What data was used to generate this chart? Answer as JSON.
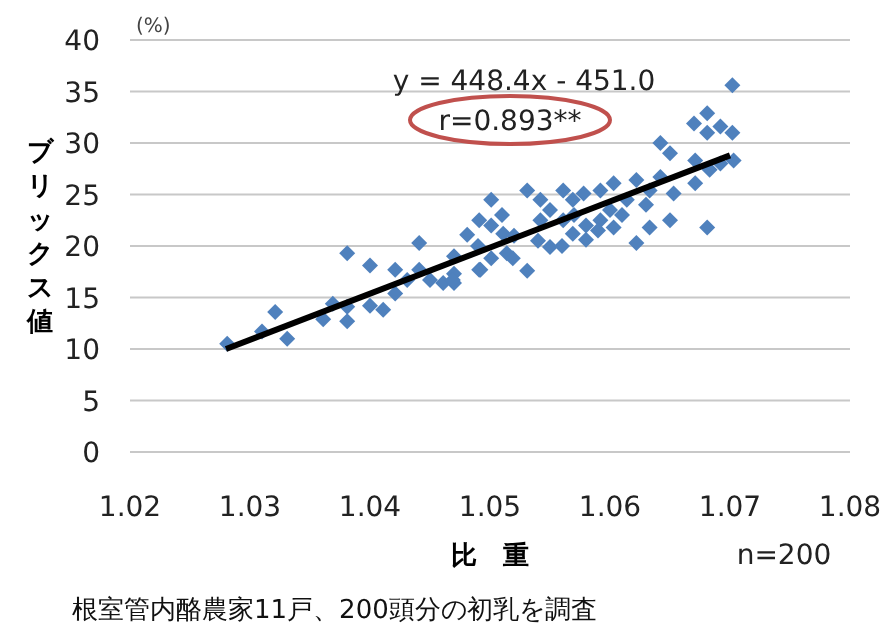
{
  "chart_data": {
    "type": "scatter",
    "xlabel": "比　重",
    "ylabel": "ブリックス値",
    "xlim": [
      1.02,
      1.08
    ],
    "xticks": [
      1.02,
      1.03,
      1.04,
      1.05,
      1.06,
      1.07,
      1.08
    ],
    "ylim": [
      0,
      40
    ],
    "yticks": [
      0,
      5,
      10,
      15,
      20,
      25,
      30,
      35,
      40
    ],
    "grid": "y",
    "annotations": [
      "(%)",
      "y = 448.4x - 451.0",
      "r=0.893**",
      "n=200",
      "根室管内酪農家11戸、200頭分の初乳を調査"
    ],
    "series": [
      {
        "marker": "diamond",
        "color": "#4f81bd",
        "x": [
          1.0281,
          1.031,
          1.0321,
          1.0331,
          1.0361,
          1.0369,
          1.0381,
          1.0381,
          1.0381,
          1.04,
          1.04,
          1.0411,
          1.0421,
          1.0421,
          1.0431,
          1.0441,
          1.0441,
          1.045,
          1.0461,
          1.047,
          1.047,
          1.0481,
          1.0491,
          1.0491,
          1.0501,
          1.0501,
          1.0501,
          1.0511,
          1.0514,
          1.0519,
          1.0469,
          1.0492,
          1.0531,
          1.0531,
          1.0542,
          1.0542,
          1.055,
          1.0561,
          1.0561,
          1.0569,
          1.0569,
          1.0578,
          1.058,
          1.0592,
          1.0592,
          1.0603,
          1.0603,
          1.0614,
          1.0622,
          1.0622,
          1.0633,
          1.0633,
          1.0642,
          1.0642,
          1.065,
          1.065,
          1.0653,
          1.067,
          1.0671,
          1.0671,
          1.0681,
          1.0681,
          1.0681,
          1.0683,
          1.0692,
          1.0692,
          1.0702,
          1.0702,
          1.0703,
          1.055,
          1.057,
          1.06,
          1.058,
          1.052,
          1.054,
          1.056,
          1.059,
          1.061,
          1.063,
          1.049,
          1.051,
          1.047
        ],
        "values": [
          10.5,
          11.7,
          13.6,
          11.0,
          12.9,
          14.4,
          19.3,
          12.7,
          14.1,
          18.1,
          14.2,
          13.8,
          17.7,
          15.4,
          16.7,
          20.3,
          17.7,
          16.7,
          16.4,
          17.3,
          16.4,
          21.1,
          22.5,
          17.7,
          24.5,
          22.0,
          18.8,
          21.2,
          19.3,
          18.8,
          16.7,
          17.7,
          25.4,
          17.6,
          24.5,
          22.5,
          19.9,
          25.4,
          22.5,
          24.5,
          21.2,
          25.1,
          20.6,
          25.4,
          22.5,
          26.1,
          21.8,
          24.5,
          26.4,
          20.3,
          25.4,
          21.8,
          30.0,
          26.7,
          29.0,
          22.5,
          25.1,
          31.9,
          26.1,
          28.3,
          32.9,
          31.0,
          21.8,
          27.4,
          31.6,
          28.0,
          35.6,
          31.0,
          28.3,
          23.5,
          23.0,
          23.5,
          22.0,
          21.0,
          20.5,
          20.0,
          21.5,
          23.0,
          24.0,
          20.0,
          23.0,
          19.0
        ]
      },
      {
        "type": "line",
        "marker": "none",
        "line_style": "solid",
        "color": "#000000",
        "x": [
          1.028,
          1.07
        ],
        "values": [
          10.0,
          28.8
        ]
      }
    ]
  }
}
